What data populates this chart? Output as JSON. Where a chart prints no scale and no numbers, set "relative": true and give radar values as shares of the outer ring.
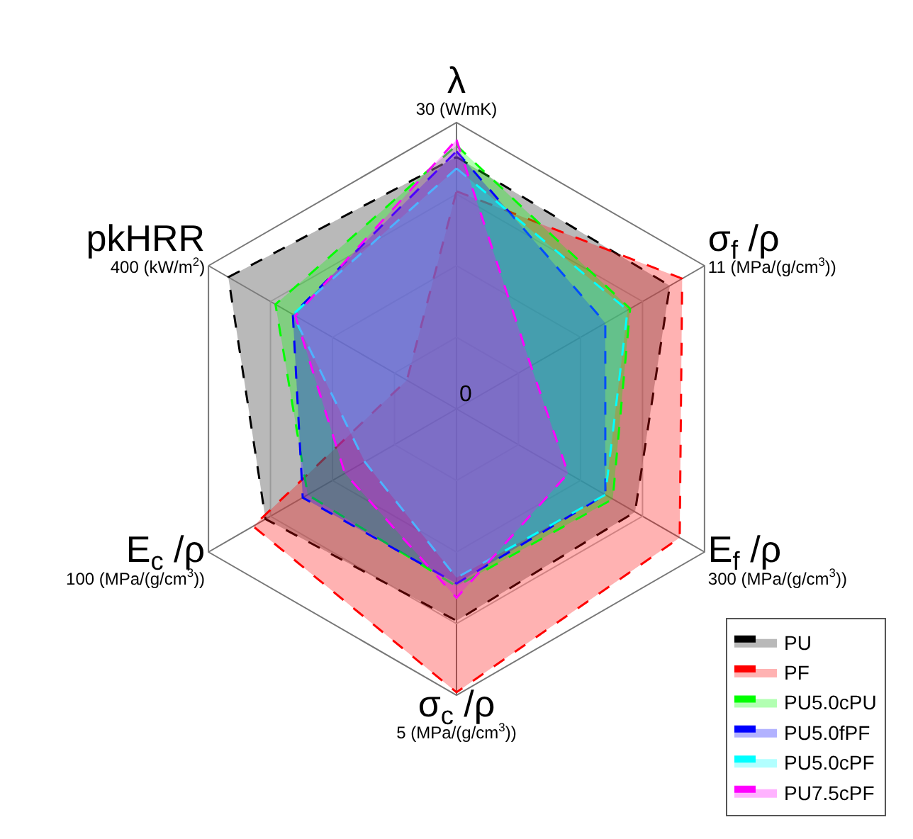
{
  "chart_data": {
    "type": "radar",
    "relative": true,
    "grid": true,
    "legend": "bottom right",
    "line_style": "dashed",
    "marker": "none",
    "categories": [
      "λ",
      "σ$_{f}$ /ρ",
      "E$_{f}$ /ρ",
      "σ$_{c}$ /ρ",
      "E$_{c}$ /ρ",
      "pkHRR"
    ],
    "annotations": [
      "30 (W/mK)",
      "11 (MPa/(g/cm$^{3}$))",
      "300 (MPa/(g/cm$^{3}$))",
      "5 (MPa/(g/cm$^{3}$))",
      "100 (MPa/(g/cm$^{3}$))",
      "400 (kW/m$^{2}$)",
      "0"
    ],
    "series": [
      {
        "name": "PU",
        "color": "#000000",
        "values": [
          0.88,
          0.86,
          0.72,
          0.74,
          0.77,
          0.92
        ]
      },
      {
        "name": "PF",
        "color": "#ff0000",
        "values": [
          0.76,
          0.91,
          0.9,
          0.99,
          0.82,
          0.2
        ]
      },
      {
        "name": "PU5.0cPU",
        "color": "#00ff00",
        "values": [
          0.92,
          0.7,
          0.63,
          0.62,
          0.6,
          0.73
        ]
      },
      {
        "name": "PU5.0fPF",
        "color": "#0000ff",
        "values": [
          0.9,
          0.6,
          0.6,
          0.61,
          0.62,
          0.66
        ]
      },
      {
        "name": "PU5.0cPF",
        "color": "#00ffff",
        "values": [
          0.84,
          0.69,
          0.6,
          0.59,
          0.37,
          0.66
        ]
      },
      {
        "name": "PU7.5cPF",
        "color": "#ff00ff",
        "values": [
          0.94,
          0.3,
          0.45,
          0.66,
          0.45,
          0.65
        ]
      }
    ]
  }
}
